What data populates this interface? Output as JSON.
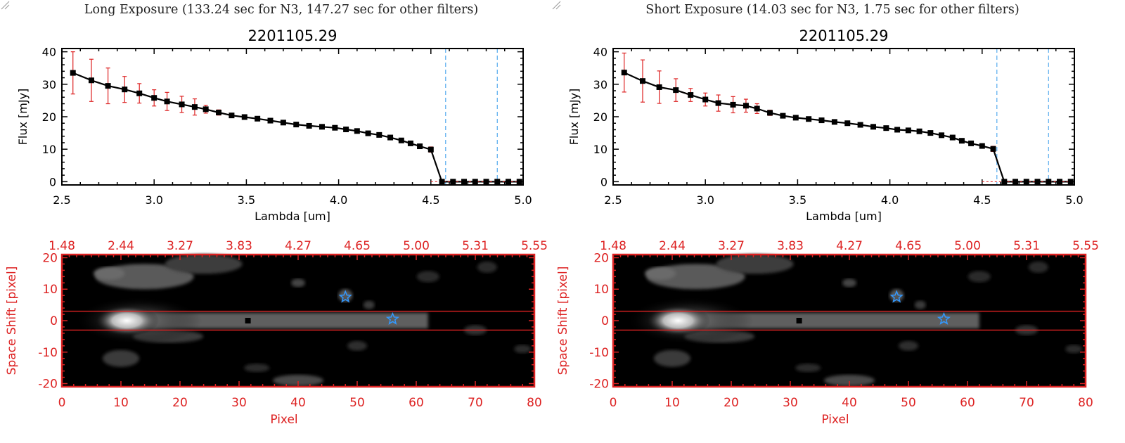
{
  "panels": [
    {
      "title": "Long Exposure (133.24 sec for N3, 147.27 sec for other filters)",
      "object_id": "2201105.29"
    },
    {
      "title": "Short Exposure (14.03 sec for N3, 1.75 sec for other filters)",
      "object_id": "2201105.29"
    }
  ],
  "colors": {
    "error_bar": "#dd2222",
    "spectrum_line": "#000000",
    "marker": "#000000",
    "dashed_line": "#55aaee",
    "image_axis": "#dd2222",
    "star_marker": "#3399ff"
  },
  "chart_data": [
    {
      "type": "line",
      "title": "2201105.29",
      "xlabel": "Lambda [um]",
      "ylabel": "Flux [mJy]",
      "xlim": [
        2.5,
        5.0
      ],
      "ylim": [
        -1,
        41
      ],
      "xticks": [
        "2.5",
        "3.0",
        "3.5",
        "4.0",
        "4.5",
        "5.0"
      ],
      "yticks": [
        "0",
        "10",
        "20",
        "30",
        "40"
      ],
      "vlines": [
        4.58,
        4.86
      ],
      "x": [
        2.56,
        2.66,
        2.75,
        2.84,
        2.92,
        3.0,
        3.07,
        3.15,
        3.22,
        3.28,
        3.35,
        3.42,
        3.49,
        3.56,
        3.63,
        3.7,
        3.77,
        3.84,
        3.91,
        3.98,
        4.04,
        4.1,
        4.16,
        4.22,
        4.28,
        4.34,
        4.39,
        4.44,
        4.5,
        4.56,
        4.62,
        4.68,
        4.74,
        4.8,
        4.86,
        4.92,
        4.98
      ],
      "y": [
        33.5,
        31.2,
        29.5,
        28.4,
        27.2,
        25.8,
        24.7,
        23.8,
        23.0,
        22.3,
        21.3,
        20.4,
        19.9,
        19.4,
        18.8,
        18.2,
        17.6,
        17.2,
        16.9,
        16.6,
        16.1,
        15.6,
        14.9,
        14.4,
        13.6,
        12.7,
        11.8,
        10.9,
        9.9,
        0,
        0,
        0,
        0,
        0,
        0,
        0,
        0
      ],
      "yerr": [
        6.5,
        6.5,
        5.5,
        4.0,
        3.0,
        2.5,
        2.8,
        2.5,
        2.5,
        1.2,
        0.8,
        0.6,
        0.5,
        0.5,
        0.5,
        0.5,
        0.5,
        0.5,
        0.5,
        0.5,
        0.5,
        0.5,
        0.5,
        0.5,
        0.5,
        0.5,
        0.5,
        0.5,
        0.8,
        0,
        0,
        0,
        0,
        0,
        0,
        0,
        0
      ]
    },
    {
      "type": "heatmap",
      "xlabel": "Pixel",
      "ylabel": "Space Shift [pixel]",
      "xlim": [
        0,
        80
      ],
      "ylim": [
        -21,
        21
      ],
      "xticks": [
        "0",
        "10",
        "20",
        "30",
        "40",
        "50",
        "60",
        "70",
        "80"
      ],
      "yticks": [
        "-20",
        "-10",
        "0",
        "10",
        "20"
      ],
      "top_axis_ticks": [
        "1.48",
        "2.44",
        "3.27",
        "3.83",
        "4.27",
        "4.65",
        "5.00",
        "5.31",
        "5.55"
      ],
      "aperture_lines": [
        3,
        -3
      ],
      "center_marker": {
        "x": 31.5,
        "y": 0
      },
      "stars": [
        {
          "x": 48,
          "y": 7.5
        },
        {
          "x": 56,
          "y": 0.5
        }
      ]
    },
    {
      "type": "line",
      "title": "2201105.29",
      "xlabel": "Lambda [um]",
      "ylabel": "Flux [mJy]",
      "xlim": [
        2.5,
        5.0
      ],
      "ylim": [
        -1,
        41
      ],
      "xticks": [
        "2.5",
        "3.0",
        "3.5",
        "4.0",
        "4.5",
        "5.0"
      ],
      "yticks": [
        "0",
        "10",
        "20",
        "30",
        "40"
      ],
      "vlines": [
        4.58,
        4.86
      ],
      "x": [
        2.56,
        2.66,
        2.75,
        2.84,
        2.92,
        3.0,
        3.07,
        3.15,
        3.22,
        3.28,
        3.35,
        3.42,
        3.49,
        3.56,
        3.63,
        3.7,
        3.77,
        3.84,
        3.91,
        3.98,
        4.04,
        4.1,
        4.16,
        4.22,
        4.28,
        4.34,
        4.39,
        4.44,
        4.5,
        4.56,
        4.62,
        4.68,
        4.74,
        4.8,
        4.86,
        4.92,
        4.98
      ],
      "y": [
        33.6,
        31.0,
        29.1,
        28.2,
        26.7,
        25.3,
        24.2,
        23.7,
        23.4,
        22.5,
        21.2,
        20.3,
        19.7,
        19.3,
        18.9,
        18.4,
        18.0,
        17.5,
        16.9,
        16.5,
        16.0,
        15.8,
        15.5,
        15.0,
        14.3,
        13.6,
        12.6,
        11.8,
        11.0,
        10.1,
        0,
        0,
        0,
        0,
        0,
        0,
        0
      ],
      "yerr": [
        6.0,
        6.5,
        5.0,
        3.5,
        2.0,
        2.0,
        2.5,
        2.5,
        2.0,
        1.5,
        0.8,
        0.6,
        0.5,
        0.5,
        0.5,
        0.5,
        0.5,
        0.5,
        0.5,
        0.5,
        0.5,
        0.5,
        0.5,
        0.5,
        0.5,
        0.5,
        0.5,
        0.5,
        0.5,
        0.8,
        0,
        0,
        0,
        0,
        0,
        0,
        0
      ]
    },
    {
      "type": "heatmap",
      "xlabel": "Pixel",
      "ylabel": "Space Shift [pixel]",
      "xlim": [
        0,
        80
      ],
      "ylim": [
        -21,
        21
      ],
      "xticks": [
        "0",
        "10",
        "20",
        "30",
        "40",
        "50",
        "60",
        "70",
        "80"
      ],
      "yticks": [
        "-20",
        "-10",
        "0",
        "10",
        "20"
      ],
      "top_axis_ticks": [
        "1.48",
        "2.44",
        "3.27",
        "3.83",
        "4.27",
        "4.65",
        "5.00",
        "5.31",
        "5.55"
      ],
      "aperture_lines": [
        3,
        -3
      ],
      "center_marker": {
        "x": 31.5,
        "y": 0
      },
      "stars": [
        {
          "x": 48,
          "y": 7.5
        },
        {
          "x": 56,
          "y": 0.5
        }
      ]
    }
  ]
}
